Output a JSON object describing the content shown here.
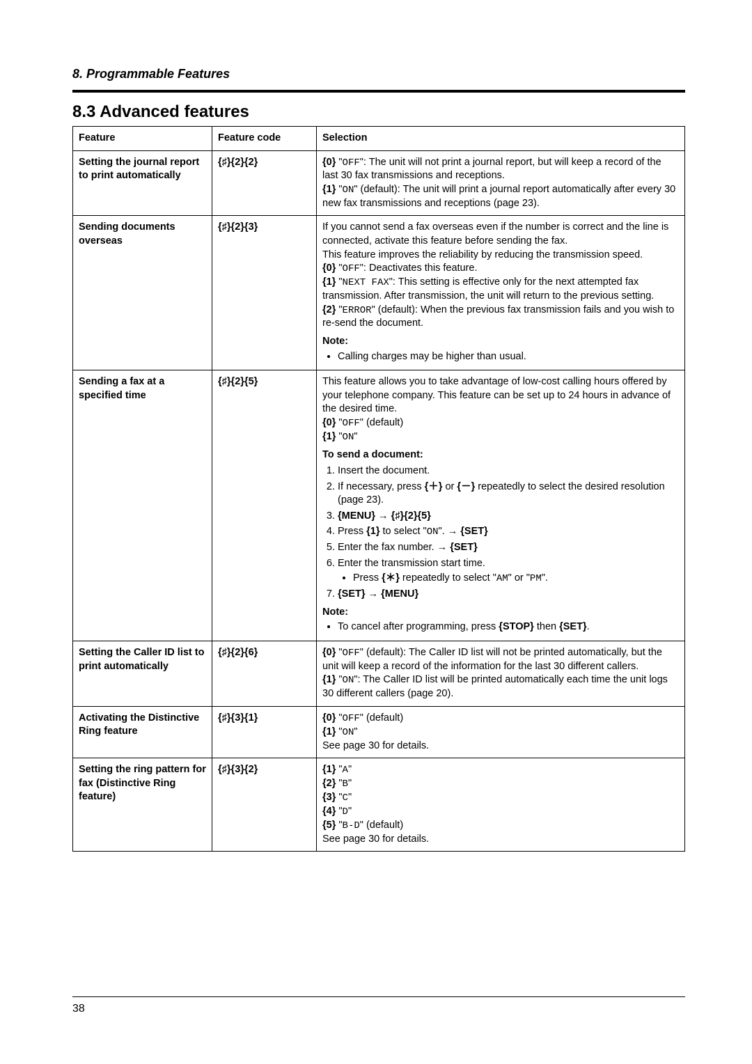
{
  "chapter": "8. Programmable Features",
  "section_title": "8.3 Advanced features",
  "page_number": "38",
  "columns": {
    "feature": "Feature",
    "code": "Feature code",
    "selection": "Selection"
  },
  "glyphs": {
    "pound": "♯",
    "arrow": "→",
    "plus": "＋",
    "minus": "－",
    "star": "＊"
  },
  "rows": {
    "r1": {
      "feature": "Setting the journal report to print automatically",
      "code_digits": [
        "2",
        "2"
      ],
      "sel": {
        "off_label": "OFF",
        "off_text": ": The unit will not print a journal report, but will keep a record of the last 30 fax transmissions and receptions.",
        "on_label": "ON",
        "on_text": " (default): The unit will print a journal report automatically after every 30 new fax transmissions and receptions (page 23)."
      }
    },
    "r2": {
      "feature": "Sending documents overseas",
      "code_digits": [
        "2",
        "3"
      ],
      "sel": {
        "intro1": "If you cannot send a fax overseas even if the number is correct and the line is connected, activate this feature before sending the fax.",
        "intro2": "This feature improves the reliability by reducing the transmission speed.",
        "off_label": "OFF",
        "off_text": ": Deactivates this feature.",
        "next_label": "NEXT FAX",
        "next_text": ": This setting is effective only for the next attempted fax transmission. After transmission, the unit will return to the previous setting.",
        "err_label": "ERROR",
        "err_text": " (default): When the previous fax transmission fails and you wish to re-send the document.",
        "note_label": "Note:",
        "note_bullet": "Calling charges may be higher than usual."
      }
    },
    "r3": {
      "feature": "Sending a fax at a specified time",
      "code_digits": [
        "2",
        "5"
      ],
      "sel": {
        "intro": "This feature allows you to take advantage of low-cost calling hours offered by your telephone company. This feature can be set up to 24 hours in advance of the desired time.",
        "off_label": "OFF",
        "off_suffix": " (default)",
        "on_label": "ON",
        "to_send": "To send a document:",
        "s1": "Insert the document.",
        "s2a": "If necessary, press ",
        "s2b": " or ",
        "s2c": " repeatedly to select the desired resolution (page 23).",
        "s3_menu": "MENU",
        "s4a": "Press ",
        "s4b": " to select \"",
        "s4c": "\". ",
        "s4_set": "SET",
        "s4_on": "ON",
        "s4_key1": "1",
        "s5a": "Enter the fax number. ",
        "s5_set": "SET",
        "s6a": "Enter the transmission start time.",
        "s6b": "Press ",
        "s6c": " repeatedly to select \"",
        "s6_am": "AM",
        "s6d": "\" or \"",
        "s6_pm": "PM",
        "s6e": "\".",
        "s7_set": "SET",
        "s7_menu": "MENU",
        "note_label": "Note:",
        "note_bullet_a": "To cancel after programming, press ",
        "note_stop": "STOP",
        "note_then": " then ",
        "note_set": "SET",
        "note_period": "."
      }
    },
    "r4": {
      "feature": "Setting the Caller ID list to print automatically",
      "code_digits": [
        "2",
        "6"
      ],
      "sel": {
        "off_label": "OFF",
        "off_text": " (default): The Caller ID list will not be printed automatically, but the unit will keep a record of the information for the last 30 different callers.",
        "on_label": "ON",
        "on_text": ": The Caller ID list will be printed automatically each time the unit logs 30 different callers (page 20)."
      }
    },
    "r5": {
      "feature": "Activating the Distinctive Ring feature",
      "code_digits": [
        "3",
        "1"
      ],
      "sel": {
        "off_label": "OFF",
        "off_suffix": " (default)",
        "on_label": "ON",
        "see": "See page 30 for details."
      }
    },
    "r6": {
      "feature": "Setting the ring pattern for fax (Distinctive Ring feature)",
      "code_digits": [
        "3",
        "2"
      ],
      "sel": {
        "a": "A",
        "b": "B",
        "c": "C",
        "d": "D",
        "bd": "B-D",
        "bd_suffix": " (default)",
        "see": "See page 30 for details."
      }
    }
  }
}
